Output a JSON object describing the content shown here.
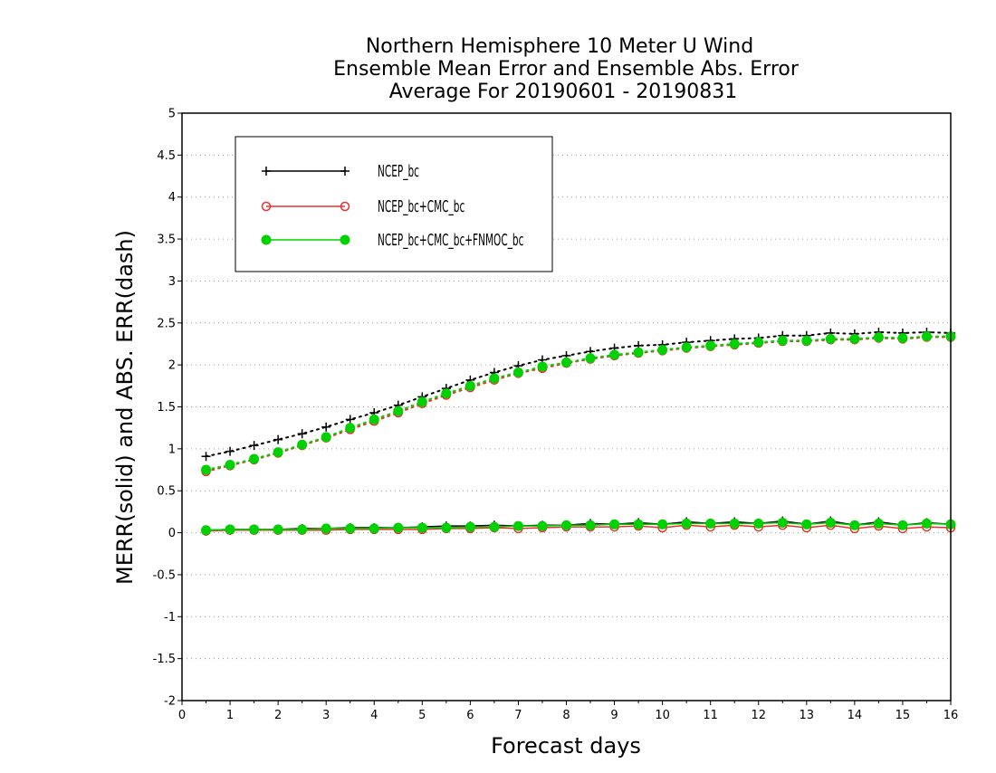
{
  "chart_data": {
    "type": "line",
    "title_lines": [
      "Northern Hemisphere 10 Meter U Wind",
      "Ensemble Mean Error and Ensemble Abs. Error",
      "Average For 20190601 - 20190831"
    ],
    "xlabel": "Forecast days",
    "ylabel": "MERR(solid) and ABS. ERR(dash)",
    "xlim": [
      0,
      16
    ],
    "ylim": [
      -2,
      5
    ],
    "x_ticks": [
      "0",
      "1",
      "2",
      "3",
      "4",
      "5",
      "6",
      "7",
      "8",
      "9",
      "10",
      "11",
      "12",
      "13",
      "14",
      "15",
      "16"
    ],
    "y_ticks": [
      "-2",
      "-1.5",
      "-1",
      "-0.5",
      "0",
      "0.5",
      "1",
      "1.5",
      "2",
      "2.5",
      "3",
      "3.5",
      "4",
      "4.5",
      "5"
    ],
    "grid": "horizontal dotted",
    "legend_position": "top-left",
    "x": [
      0.5,
      1,
      1.5,
      2,
      2.5,
      3,
      3.5,
      4,
      4.5,
      5,
      5.5,
      6,
      6.5,
      7,
      7.5,
      8,
      8.5,
      9,
      9.5,
      10,
      10.5,
      11,
      11.5,
      12,
      12.5,
      13,
      13.5,
      14,
      14.5,
      15,
      15.5,
      16
    ],
    "series": [
      {
        "name": "NCEP_bc",
        "color": "#000000",
        "marker": "plus",
        "abs_err_dash": [
          0.91,
          0.97,
          1.04,
          1.11,
          1.18,
          1.26,
          1.35,
          1.43,
          1.52,
          1.62,
          1.72,
          1.82,
          1.91,
          1.99,
          2.06,
          2.11,
          2.16,
          2.2,
          2.23,
          2.24,
          2.27,
          2.29,
          2.31,
          2.32,
          2.35,
          2.35,
          2.38,
          2.37,
          2.39,
          2.38,
          2.39,
          2.38
        ],
        "mean_err_solid": [
          0.03,
          0.04,
          0.04,
          0.04,
          0.05,
          0.05,
          0.06,
          0.06,
          0.06,
          0.07,
          0.08,
          0.08,
          0.09,
          0.08,
          0.09,
          0.09,
          0.11,
          0.1,
          0.12,
          0.1,
          0.13,
          0.11,
          0.13,
          0.11,
          0.14,
          0.1,
          0.14,
          0.09,
          0.13,
          0.09,
          0.12,
          0.1
        ]
      },
      {
        "name": "NCEP_bc+CMC_bc",
        "color": "#e8312f",
        "marker": "open-circle",
        "abs_err_dash": [
          0.73,
          0.8,
          0.87,
          0.95,
          1.04,
          1.13,
          1.23,
          1.33,
          1.43,
          1.54,
          1.64,
          1.73,
          1.82,
          1.9,
          1.96,
          2.02,
          2.07,
          2.11,
          2.14,
          2.17,
          2.2,
          2.22,
          2.24,
          2.26,
          2.28,
          2.28,
          2.3,
          2.3,
          2.32,
          2.31,
          2.33,
          2.33
        ],
        "mean_err_solid": [
          0.02,
          0.03,
          0.03,
          0.03,
          0.03,
          0.03,
          0.04,
          0.04,
          0.04,
          0.04,
          0.05,
          0.05,
          0.06,
          0.05,
          0.06,
          0.07,
          0.07,
          0.07,
          0.08,
          0.06,
          0.09,
          0.07,
          0.09,
          0.07,
          0.09,
          0.06,
          0.09,
          0.05,
          0.08,
          0.05,
          0.07,
          0.06
        ]
      },
      {
        "name": "NCEP_bc+CMC_bc+FNMOC_bc",
        "color": "#00d100",
        "marker": "filled-circle",
        "abs_err_dash": [
          0.75,
          0.81,
          0.88,
          0.96,
          1.05,
          1.14,
          1.25,
          1.35,
          1.45,
          1.56,
          1.66,
          1.75,
          1.84,
          1.91,
          1.98,
          2.03,
          2.08,
          2.12,
          2.15,
          2.18,
          2.21,
          2.23,
          2.25,
          2.27,
          2.29,
          2.29,
          2.31,
          2.31,
          2.33,
          2.32,
          2.34,
          2.34
        ],
        "mean_err_solid": [
          0.03,
          0.04,
          0.04,
          0.04,
          0.04,
          0.05,
          0.05,
          0.05,
          0.06,
          0.06,
          0.06,
          0.07,
          0.07,
          0.08,
          0.08,
          0.09,
          0.09,
          0.1,
          0.1,
          0.1,
          0.11,
          0.11,
          0.11,
          0.11,
          0.12,
          0.1,
          0.12,
          0.09,
          0.11,
          0.09,
          0.11,
          0.1
        ]
      }
    ]
  }
}
